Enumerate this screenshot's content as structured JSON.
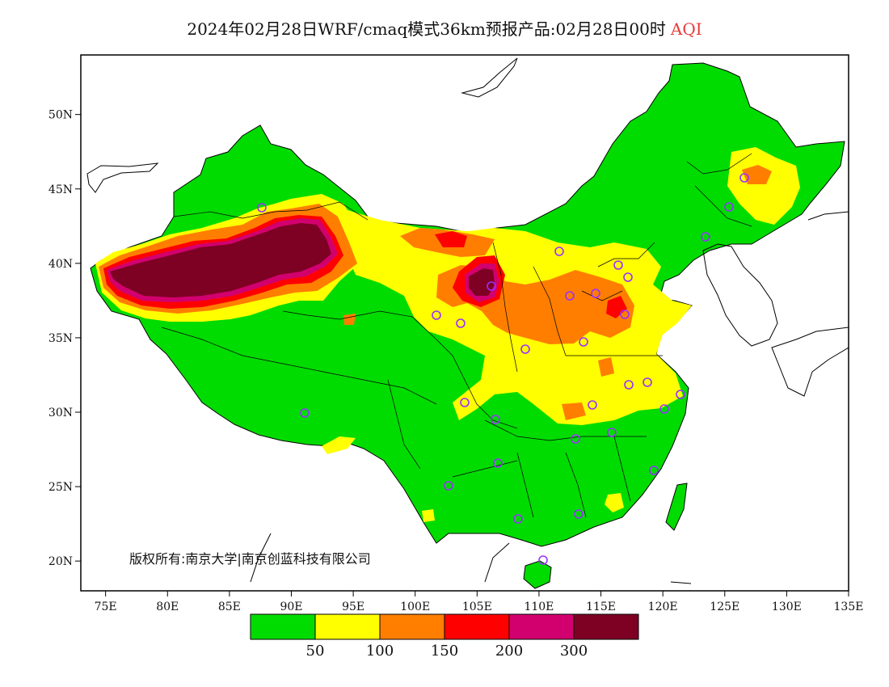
{
  "title": {
    "main": "2024年02月28日WRF/cmaq模式36km预报产品:02月28日00时",
    "variable": "AQI"
  },
  "map": {
    "lon_range": [
      73,
      135
    ],
    "lat_range": [
      18,
      54
    ],
    "lon_ticks": [
      "75E",
      "80E",
      "85E",
      "90E",
      "95E",
      "100E",
      "105E",
      "110E",
      "115E",
      "120E",
      "125E",
      "130E",
      "135E"
    ],
    "lat_ticks": [
      "20N",
      "25N",
      "30N",
      "35N",
      "40N",
      "45N",
      "50N"
    ],
    "copyright": "版权所有:南京大学|南京创蓝科技有限公司",
    "colors": {
      "aqi_0_50": "#00dc00",
      "aqi_50_100": "#ffff00",
      "aqi_100_150": "#ff7e00",
      "aqi_150_200": "#ff0000",
      "aqi_200_300": "#d2006e",
      "aqi_300_plus": "#7e0023",
      "station_marker": "#9b30ff"
    }
  },
  "legend": {
    "labels": [
      "50",
      "100",
      "150",
      "200",
      "300"
    ],
    "colors": [
      "#00dc00",
      "#ffff00",
      "#ff7e00",
      "#ff0000",
      "#d2006e",
      "#7e0023"
    ]
  }
}
